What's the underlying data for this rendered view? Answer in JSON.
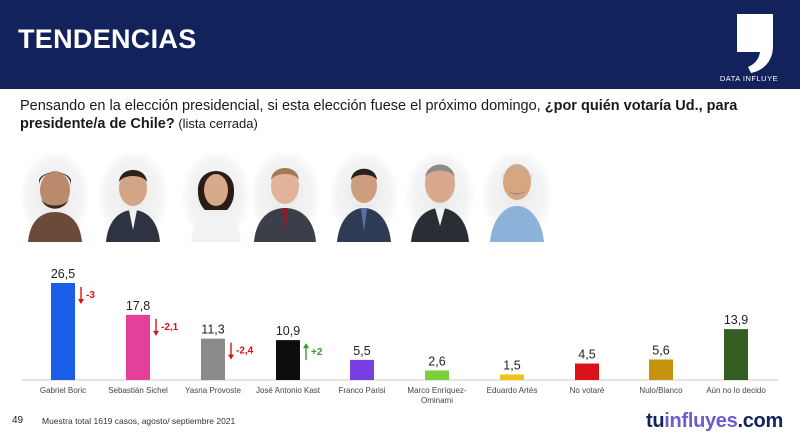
{
  "header": {
    "title": "TENDENCIAS",
    "brand_label": "DATA INFLUYE"
  },
  "question": {
    "text_plain": "Pensando en la elección presidencial, si esta elección fuese el próximo domingo, ",
    "text_bold": "¿por quién votaría Ud., para presidente/a de Chile?",
    "text_note": " (lista cerrada)"
  },
  "chart_data": {
    "type": "bar",
    "title": "",
    "xlabel": "",
    "ylabel": "",
    "ylim": [
      0,
      30
    ],
    "grid": false,
    "legend": "none",
    "categories": [
      "Gabriel Boric",
      "Sebastián Sichel",
      "Yasna Provoste",
      "José Antonio Kast",
      "Franco Parisi",
      "Marco Enríquez-Ominami",
      "Eduardo Artés",
      "No votaré",
      "Nulo/Blanco",
      "Aún no lo decido"
    ],
    "category_lines": [
      [
        "Gabriel Boric"
      ],
      [
        "Sebastián Sichel"
      ],
      [
        "Yasna Provoste"
      ],
      [
        "José Antonio Kast"
      ],
      [
        "Franco Parisi"
      ],
      [
        "Marco Enríquez-",
        "Ominami"
      ],
      [
        "Eduardo Artés"
      ],
      [
        "No votaré"
      ],
      [
        "Nulo/Blanco"
      ],
      [
        "Aún no lo decido"
      ]
    ],
    "values": [
      26.5,
      17.8,
      11.3,
      10.9,
      5.5,
      2.6,
      1.5,
      4.5,
      5.6,
      13.9
    ],
    "value_labels": [
      "26,5",
      "17,8",
      "11,3",
      "10,9",
      "5,5",
      "2,6",
      "1,5",
      "4,5",
      "5,6",
      "13,9"
    ],
    "colors": [
      "#1a5ee8",
      "#e4409a",
      "#8a8a8a",
      "#0d0d0d",
      "#7a3fe0",
      "#7ccf3a",
      "#f2c21c",
      "#d9121b",
      "#c4930f",
      "#345e22"
    ],
    "changes": [
      {
        "index": 0,
        "direction": "down",
        "label": "-3"
      },
      {
        "index": 1,
        "direction": "down",
        "label": "-2,1"
      },
      {
        "index": 2,
        "direction": "down",
        "label": "-2,4"
      },
      {
        "index": 3,
        "direction": "up",
        "label": "+2"
      }
    ],
    "change_colors": {
      "down": "#d9121b",
      "up": "#3a9a2a"
    }
  },
  "footer": {
    "page_number": "49",
    "note": "Muestra total 1619 casos, agosto/ septiembre 2021",
    "brand_pre": "tu",
    "brand_highlight": "influyes",
    "brand_post": ".com"
  },
  "colors": {
    "header_bg": "#12235b",
    "brand_text": "#12235b",
    "brand_highlight": "#6d5bd0"
  }
}
